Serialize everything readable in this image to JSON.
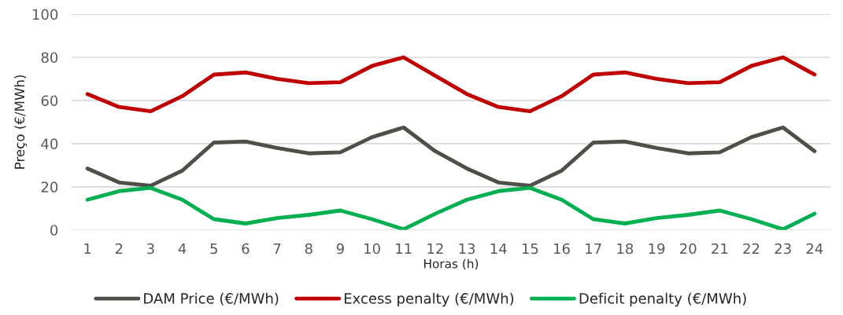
{
  "chart_data": {
    "type": "line",
    "xlabel": "Horas (h)",
    "ylabel": "Preço (€/MWh)",
    "categories": [
      "1",
      "2",
      "3",
      "4",
      "5",
      "6",
      "7",
      "8",
      "9",
      "10",
      "11",
      "12",
      "13",
      "14",
      "15",
      "16",
      "17",
      "18",
      "19",
      "20",
      "21",
      "22",
      "23",
      "24"
    ],
    "series": [
      {
        "name": "DAM Price (€/MWh)",
        "color": "#4f4f47",
        "values": [
          28.5,
          22,
          20.5,
          27.5,
          40.5,
          41,
          38,
          35.5,
          36,
          43,
          47.5,
          36.5,
          28.5,
          22,
          20.5,
          27.5,
          40.5,
          41,
          38,
          35.5,
          36,
          43,
          47.5,
          36.5
        ]
      },
      {
        "name": "Excess penalty (€/MWh)",
        "color": "#c00000",
        "values": [
          63,
          57,
          55,
          62,
          72,
          73,
          70,
          68,
          68.5,
          76,
          80,
          71.5,
          63,
          57,
          55,
          62,
          72,
          73,
          70,
          68,
          68.5,
          76,
          80,
          72
        ]
      },
      {
        "name": "Deficit penalty (€/MWh)",
        "color": "#00b050",
        "values": [
          14,
          18,
          19.5,
          14,
          5,
          3,
          5.5,
          7,
          9,
          5,
          0.3,
          7.5,
          14,
          18,
          19.5,
          14,
          5,
          3,
          5.5,
          7,
          9,
          5,
          0.3,
          7.5
        ]
      }
    ],
    "ylim": [
      0,
      100
    ],
    "yticks": [
      0,
      20,
      40,
      60,
      80,
      100
    ],
    "grid": "y",
    "legend": "bottom",
    "marker": "none",
    "line_style": "solid"
  }
}
